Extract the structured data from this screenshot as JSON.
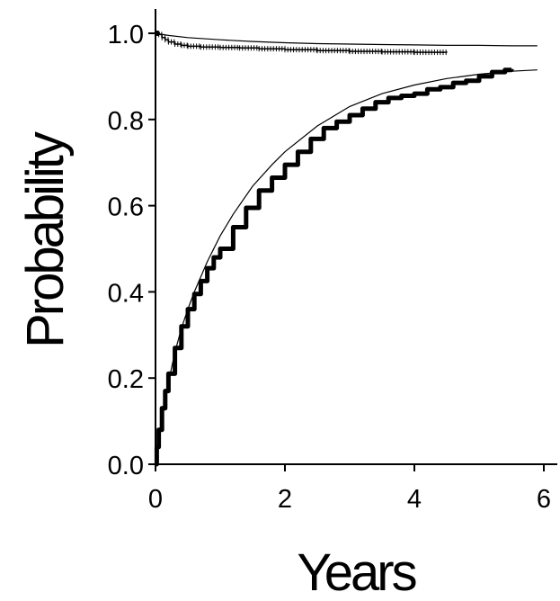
{
  "chart_data": {
    "type": "line",
    "title": "",
    "xlabel": "Years",
    "ylabel": "Probability",
    "xlim": [
      0,
      6
    ],
    "ylim": [
      0,
      1
    ],
    "xticks": [
      0,
      2,
      4,
      6
    ],
    "xtick_labels": [
      "0",
      "2",
      "4",
      "6"
    ],
    "yticks": [
      0.0,
      0.2,
      0.4,
      0.6,
      0.8,
      1.0
    ],
    "ytick_labels": [
      "0.0",
      "0.2",
      "0.4",
      "0.6",
      "0.8",
      "1.0"
    ],
    "grid": false,
    "legend": "none",
    "series": [
      {
        "style": "thick-step",
        "color": "#000000",
        "x": [
          0,
          0.02,
          0.05,
          0.1,
          0.15,
          0.2,
          0.3,
          0.4,
          0.5,
          0.6,
          0.7,
          0.8,
          0.9,
          1.0,
          1.2,
          1.4,
          1.6,
          1.8,
          2.0,
          2.2,
          2.4,
          2.6,
          2.8,
          3.0,
          3.2,
          3.4,
          3.6,
          3.8,
          4.0,
          4.2,
          4.4,
          4.6,
          4.8,
          5.0,
          5.2,
          5.4,
          5.5
        ],
        "y": [
          0.0,
          0.04,
          0.08,
          0.13,
          0.17,
          0.21,
          0.27,
          0.32,
          0.36,
          0.395,
          0.425,
          0.455,
          0.48,
          0.5,
          0.55,
          0.595,
          0.635,
          0.665,
          0.695,
          0.725,
          0.755,
          0.78,
          0.795,
          0.81,
          0.825,
          0.84,
          0.85,
          0.855,
          0.86,
          0.87,
          0.875,
          0.885,
          0.89,
          0.9,
          0.91,
          0.915,
          0.917
        ]
      },
      {
        "style": "thin-smooth",
        "color": "#000000",
        "x": [
          0,
          0.05,
          0.1,
          0.2,
          0.3,
          0.4,
          0.5,
          0.6,
          0.8,
          1.0,
          1.2,
          1.5,
          1.8,
          2.0,
          2.5,
          3.0,
          3.5,
          4.0,
          4.5,
          5.0,
          5.5,
          5.9
        ],
        "y": [
          0.0,
          0.06,
          0.11,
          0.19,
          0.26,
          0.315,
          0.36,
          0.4,
          0.47,
          0.53,
          0.58,
          0.645,
          0.695,
          0.725,
          0.785,
          0.83,
          0.86,
          0.88,
          0.895,
          0.905,
          0.912,
          0.915
        ]
      },
      {
        "style": "dotted-step",
        "color": "#000000",
        "x": [
          0,
          0.05,
          0.1,
          0.15,
          0.2,
          0.3,
          0.4,
          0.5,
          0.7,
          1.0,
          1.3,
          1.6,
          2.0,
          2.5,
          3.0,
          3.5,
          4.0,
          4.5
        ],
        "y": [
          1.0,
          0.997,
          0.99,
          0.985,
          0.98,
          0.975,
          0.972,
          0.97,
          0.968,
          0.967,
          0.966,
          0.964,
          0.962,
          0.96,
          0.958,
          0.957,
          0.956,
          0.955
        ]
      },
      {
        "style": "thin-smooth",
        "color": "#000000",
        "x": [
          0,
          0.2,
          0.5,
          1.0,
          1.5,
          2.0,
          2.5,
          3.0,
          3.5,
          4.0,
          4.5,
          5.0,
          5.5,
          5.9
        ],
        "y": [
          1.0,
          0.995,
          0.99,
          0.985,
          0.981,
          0.978,
          0.976,
          0.975,
          0.974,
          0.973,
          0.972,
          0.972,
          0.971,
          0.971
        ]
      }
    ]
  }
}
